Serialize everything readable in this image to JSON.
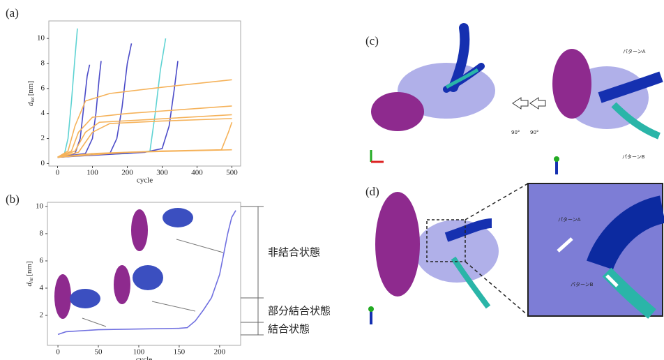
{
  "chart_data": [
    {
      "type": "line",
      "xlabel": "cycle",
      "ylabel": {
        "symbol": "d",
        "subscript": "int",
        "unit": "[nm]"
      },
      "xlim": [
        -25,
        525
      ],
      "ylim": [
        -0.2,
        11.4
      ],
      "xticks": [
        0,
        100,
        200,
        300,
        400,
        500
      ],
      "yticks": [
        0,
        2,
        4,
        6,
        8,
        10
      ],
      "series": [
        {
          "color": "#5fd3d3",
          "x": [
            0,
            20,
            30,
            40,
            50,
            57
          ],
          "values": [
            0.5,
            0.8,
            2,
            5,
            8.5,
            10.8
          ]
        },
        {
          "color": "#5fd3d3",
          "x": [
            0,
            100,
            200,
            265,
            280,
            295,
            310
          ],
          "values": [
            0.5,
            0.7,
            0.8,
            1,
            4,
            7.5,
            10
          ]
        },
        {
          "color": "#4b4bc8",
          "x": [
            0,
            50,
            65,
            75,
            85,
            92
          ],
          "values": [
            0.5,
            0.8,
            2,
            4.5,
            7,
            7.9
          ]
        },
        {
          "color": "#4b4bc8",
          "x": [
            0,
            80,
            100,
            110,
            120,
            125
          ],
          "values": [
            0.5,
            0.8,
            2,
            4,
            7,
            8.2
          ]
        },
        {
          "color": "#4b4bc8",
          "x": [
            0,
            150,
            170,
            185,
            200,
            212
          ],
          "values": [
            0.5,
            0.8,
            2,
            4.5,
            8,
            9.6
          ]
        },
        {
          "color": "#4b4bc8",
          "x": [
            0,
            250,
            300,
            320,
            335,
            345
          ],
          "values": [
            0.5,
            0.9,
            1.2,
            3,
            6,
            8.2
          ]
        },
        {
          "color": "#f5b25a",
          "x": [
            0,
            30,
            50,
            80,
            150,
            300,
            500
          ],
          "values": [
            0.5,
            1,
            3,
            5,
            5.6,
            6.1,
            6.7
          ]
        },
        {
          "color": "#f5b25a",
          "x": [
            0,
            40,
            60,
            100,
            200,
            350,
            500
          ],
          "values": [
            0.5,
            1,
            2.5,
            3.7,
            4.0,
            4.3,
            4.6
          ]
        },
        {
          "color": "#f5b25a",
          "x": [
            0,
            50,
            80,
            120,
            250,
            500
          ],
          "values": [
            0.5,
            1,
            2.5,
            3.3,
            3.5,
            3.9
          ]
        },
        {
          "color": "#f5b25a",
          "x": [
            0,
            60,
            100,
            150,
            300,
            500
          ],
          "values": [
            0.5,
            0.9,
            2.5,
            3.2,
            3.4,
            3.6
          ]
        },
        {
          "color": "#f5b25a",
          "x": [
            0,
            100,
            300,
            470,
            490,
            500
          ],
          "values": [
            0.5,
            0.8,
            1,
            1.1,
            2.5,
            3.3
          ]
        },
        {
          "color": "#f5b25a",
          "x": [
            0,
            200,
            500
          ],
          "values": [
            0.5,
            0.9,
            1.1
          ]
        }
      ]
    },
    {
      "type": "line",
      "xlabel": "cycle",
      "ylabel": {
        "symbol": "d",
        "subscript": "int",
        "unit": "[nm]"
      },
      "xlim": [
        -13,
        226
      ],
      "ylim": [
        -0.2,
        10.3
      ],
      "xticks": [
        0,
        50,
        100,
        150,
        200
      ],
      "yticks": [
        2,
        4,
        6,
        8,
        10
      ],
      "series": [
        {
          "color": "#7070e0",
          "x": [
            0,
            10,
            50,
            100,
            150,
            160,
            170,
            180,
            190,
            200,
            205,
            210,
            215,
            220
          ],
          "values": [
            0.6,
            0.8,
            0.95,
            1.0,
            1.05,
            1.1,
            1.6,
            2.4,
            3.3,
            5,
            6.5,
            8,
            9.2,
            9.7
          ]
        }
      ],
      "annotations": [
        "非結合状態",
        "部分結合状態",
        "結合状態"
      ]
    }
  ],
  "panel_labels": [
    "(a)",
    "(b)",
    "(c)",
    "(d)"
  ],
  "panel_c": {
    "pattern_a": "パターンA",
    "pattern_b": "パターンB",
    "rotation_1": "90°",
    "rotation_2": "90°"
  },
  "panel_d": {
    "pattern_a": "パターンA",
    "pattern_b": "パターンB"
  }
}
